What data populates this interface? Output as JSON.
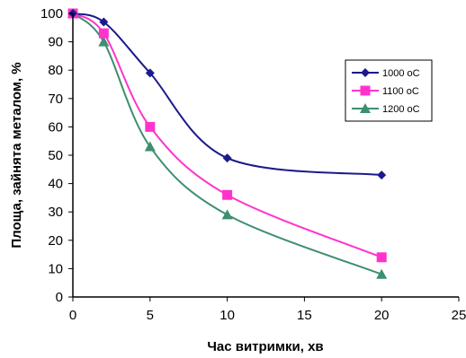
{
  "chart_data": {
    "type": "line",
    "xlabel": "Час витримки, хв",
    "ylabel": "Площа, зайнята металом, %",
    "xlim": [
      0,
      25
    ],
    "ylim": [
      0,
      100
    ],
    "xticks": [
      0,
      5,
      10,
      15,
      20,
      25
    ],
    "yticks": [
      0,
      10,
      20,
      30,
      40,
      50,
      60,
      70,
      80,
      90,
      100
    ],
    "grid": false,
    "legend_position": "right",
    "series": [
      {
        "name": "1000 oC",
        "color": "#1a1a8c",
        "marker": "diamond",
        "x": [
          0,
          2,
          5,
          10,
          20
        ],
        "y": [
          100,
          97,
          79,
          49,
          43
        ]
      },
      {
        "name": "1100 oC",
        "color": "#ff33cc",
        "marker": "square",
        "x": [
          0,
          2,
          5,
          10,
          20
        ],
        "y": [
          100,
          93,
          60,
          36,
          14
        ]
      },
      {
        "name": "1200 oC",
        "color": "#3d8f6f",
        "marker": "triangle",
        "x": [
          0,
          2,
          5,
          10,
          20
        ],
        "y": [
          100,
          90,
          53,
          29,
          8
        ]
      }
    ]
  }
}
